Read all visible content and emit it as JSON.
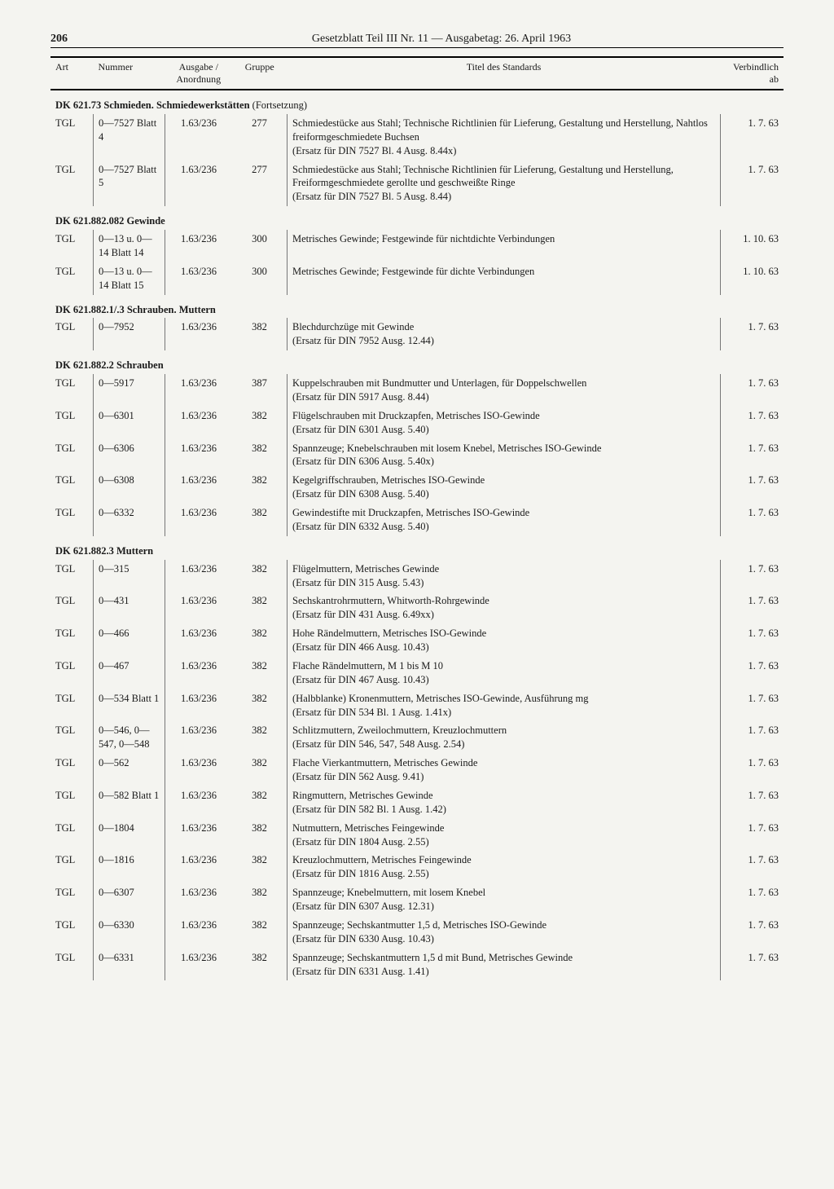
{
  "page_number": "206",
  "header_title": "Gesetzblatt Teil III Nr. 11 — Ausgabetag: 26. April 1963",
  "columns": {
    "art": "Art",
    "nummer": "Nummer",
    "ausgabe": "Ausgabe / Anordnung",
    "gruppe": "Gruppe",
    "titel": "Titel des Standards",
    "verbindlich": "Verbind­lich ab"
  },
  "sections": [
    {
      "heading": "DK 621.73 Schmieden. Schmiedewerkstätten",
      "continuation": "(Fortsetzung)",
      "rows": [
        {
          "art": "TGL",
          "num": "0—7527 Blatt 4",
          "ausg": "1.63/236",
          "grp": "277",
          "titel": "Schmiedestücke aus Stahl; Technische Richtlinien für Lieferung, Gestaltung und Herstellung, Nahtlos freiformgeschmiedete Buchsen\n(Ersatz für DIN 7527 Bl. 4 Ausg. 8.44x)",
          "verb": "1. 7. 63"
        },
        {
          "art": "TGL",
          "num": "0—7527 Blatt 5",
          "ausg": "1.63/236",
          "grp": "277",
          "titel": "Schmiedestücke aus Stahl; Technische Richtlinien für Lieferung, Gestaltung und Herstellung, Freiformgeschmiedete gerollte und geschweißte Ringe\n(Ersatz für DIN 7527 Bl. 5 Ausg. 8.44)",
          "verb": "1. 7. 63"
        }
      ]
    },
    {
      "heading": "DK 621.882.082 Gewinde",
      "rows": [
        {
          "art": "TGL",
          "num": "0—13 u. 0—14 Blatt 14",
          "ausg": "1.63/236",
          "grp": "300",
          "titel": "Metrisches Gewinde; Festgewinde für nichtdichte Verbindungen",
          "verb": "1. 10. 63"
        },
        {
          "art": "TGL",
          "num": "0—13 u. 0—14 Blatt 15",
          "ausg": "1.63/236",
          "grp": "300",
          "titel": "Metrisches Gewinde; Festgewinde für dichte Verbindungen",
          "verb": "1. 10. 63"
        }
      ]
    },
    {
      "heading": "DK 621.882.1/.3 Schrauben. Muttern",
      "rows": [
        {
          "art": "TGL",
          "num": "0—7952",
          "ausg": "1.63/236",
          "grp": "382",
          "titel": "Blechdurchzüge mit Gewinde\n(Ersatz für DIN 7952 Ausg. 12.44)",
          "verb": "1. 7. 63"
        }
      ]
    },
    {
      "heading": "DK 621.882.2 Schrauben",
      "rows": [
        {
          "art": "TGL",
          "num": "0—5917",
          "ausg": "1.63/236",
          "grp": "387",
          "titel": "Kuppelschrauben mit Bundmutter und Unterlagen, für Doppelschwellen\n(Ersatz für DIN 5917 Ausg. 8.44)",
          "verb": "1. 7. 63"
        },
        {
          "art": "TGL",
          "num": "0—6301",
          "ausg": "1.63/236",
          "grp": "382",
          "titel": "Flügelschrauben mit Druckzapfen, Metrisches ISO-Gewinde\n(Ersatz für DIN 6301 Ausg. 5.40)",
          "verb": "1. 7. 63"
        },
        {
          "art": "TGL",
          "num": "0—6306",
          "ausg": "1.63/236",
          "grp": "382",
          "titel": "Spannzeuge; Knebelschrauben mit losem Knebel, Metrisches ISO-Gewinde\n(Ersatz für DIN 6306 Ausg. 5.40x)",
          "verb": "1. 7. 63"
        },
        {
          "art": "TGL",
          "num": "0—6308",
          "ausg": "1.63/236",
          "grp": "382",
          "titel": "Kegelgriffschrauben, Metrisches ISO-Gewinde\n(Ersatz für DIN 6308 Ausg. 5.40)",
          "verb": "1. 7. 63"
        },
        {
          "art": "TGL",
          "num": "0—6332",
          "ausg": "1.63/236",
          "grp": "382",
          "titel": "Gewindestifte mit Druckzapfen, Metrisches ISO-Gewinde\n(Ersatz für DIN 6332 Ausg. 5.40)",
          "verb": "1. 7. 63"
        }
      ]
    },
    {
      "heading": "DK 621.882.3 Muttern",
      "rows": [
        {
          "art": "TGL",
          "num": "0—315",
          "ausg": "1.63/236",
          "grp": "382",
          "titel": "Flügelmuttern, Metrisches Gewinde\n(Ersatz für DIN 315 Ausg. 5.43)",
          "verb": "1. 7. 63"
        },
        {
          "art": "TGL",
          "num": "0—431",
          "ausg": "1.63/236",
          "grp": "382",
          "titel": "Sechskantrohrmuttern, Whitworth-Rohrgewinde\n(Ersatz für DIN 431 Ausg. 6.49xx)",
          "verb": "1. 7. 63"
        },
        {
          "art": "TGL",
          "num": "0—466",
          "ausg": "1.63/236",
          "grp": "382",
          "titel": "Hohe Rändelmuttern, Metrisches ISO-Gewinde\n(Ersatz für DIN 466 Ausg. 10.43)",
          "verb": "1. 7. 63"
        },
        {
          "art": "TGL",
          "num": "0—467",
          "ausg": "1.63/236",
          "grp": "382",
          "titel": "Flache Rändelmuttern, M 1 bis M 10\n(Ersatz für DIN 467 Ausg. 10.43)",
          "verb": "1. 7. 63"
        },
        {
          "art": "TGL",
          "num": "0—534 Blatt 1",
          "ausg": "1.63/236",
          "grp": "382",
          "titel": "(Halbblanke) Kronenmuttern, Metrisches ISO-Gewinde, Ausführung mg\n(Ersatz für DIN 534 Bl. 1 Ausg. 1.41x)",
          "verb": "1. 7. 63"
        },
        {
          "art": "TGL",
          "num": "0—546, 0—547, 0—548",
          "ausg": "1.63/236",
          "grp": "382",
          "titel": "Schlitzmuttern, Zweilochmuttern, Kreuzlochmuttern\n(Ersatz für DIN 546, 547, 548 Ausg. 2.54)",
          "verb": "1. 7. 63"
        },
        {
          "art": "TGL",
          "num": "0—562",
          "ausg": "1.63/236",
          "grp": "382",
          "titel": "Flache Vierkantmuttern, Metrisches Gewinde\n(Ersatz für DIN 562 Ausg. 9.41)",
          "verb": "1. 7. 63"
        },
        {
          "art": "TGL",
          "num": "0—582 Blatt 1",
          "ausg": "1.63/236",
          "grp": "382",
          "titel": "Ringmuttern, Metrisches Gewinde\n(Ersatz für DIN 582 Bl. 1 Ausg. 1.42)",
          "verb": "1. 7. 63"
        },
        {
          "art": "TGL",
          "num": "0—1804",
          "ausg": "1.63/236",
          "grp": "382",
          "titel": "Nutmuttern, Metrisches Feingewinde\n(Ersatz für DIN 1804 Ausg. 2.55)",
          "verb": "1. 7. 63"
        },
        {
          "art": "TGL",
          "num": "0—1816",
          "ausg": "1.63/236",
          "grp": "382",
          "titel": "Kreuzlochmuttern, Metrisches Feingewinde\n(Ersatz für DIN 1816 Ausg. 2.55)",
          "verb": "1. 7. 63"
        },
        {
          "art": "TGL",
          "num": "0—6307",
          "ausg": "1.63/236",
          "grp": "382",
          "titel": "Spannzeuge; Knebelmuttern, mit losem Knebel\n(Ersatz für DIN 6307 Ausg. 12.31)",
          "verb": "1. 7. 63"
        },
        {
          "art": "TGL",
          "num": "0—6330",
          "ausg": "1.63/236",
          "grp": "382",
          "titel": "Spannzeuge; Sechskantmutter 1,5 d, Metrisches ISO-Gewinde\n(Ersatz für DIN 6330 Ausg. 10.43)",
          "verb": "1. 7. 63"
        },
        {
          "art": "TGL",
          "num": "0—6331",
          "ausg": "1.63/236",
          "grp": "382",
          "titel": "Spannzeuge; Sechskantmuttern 1,5 d mit Bund, Metrisches Gewinde\n(Ersatz für DIN 6331 Ausg. 1.41)",
          "verb": "1. 7. 63"
        }
      ]
    }
  ]
}
